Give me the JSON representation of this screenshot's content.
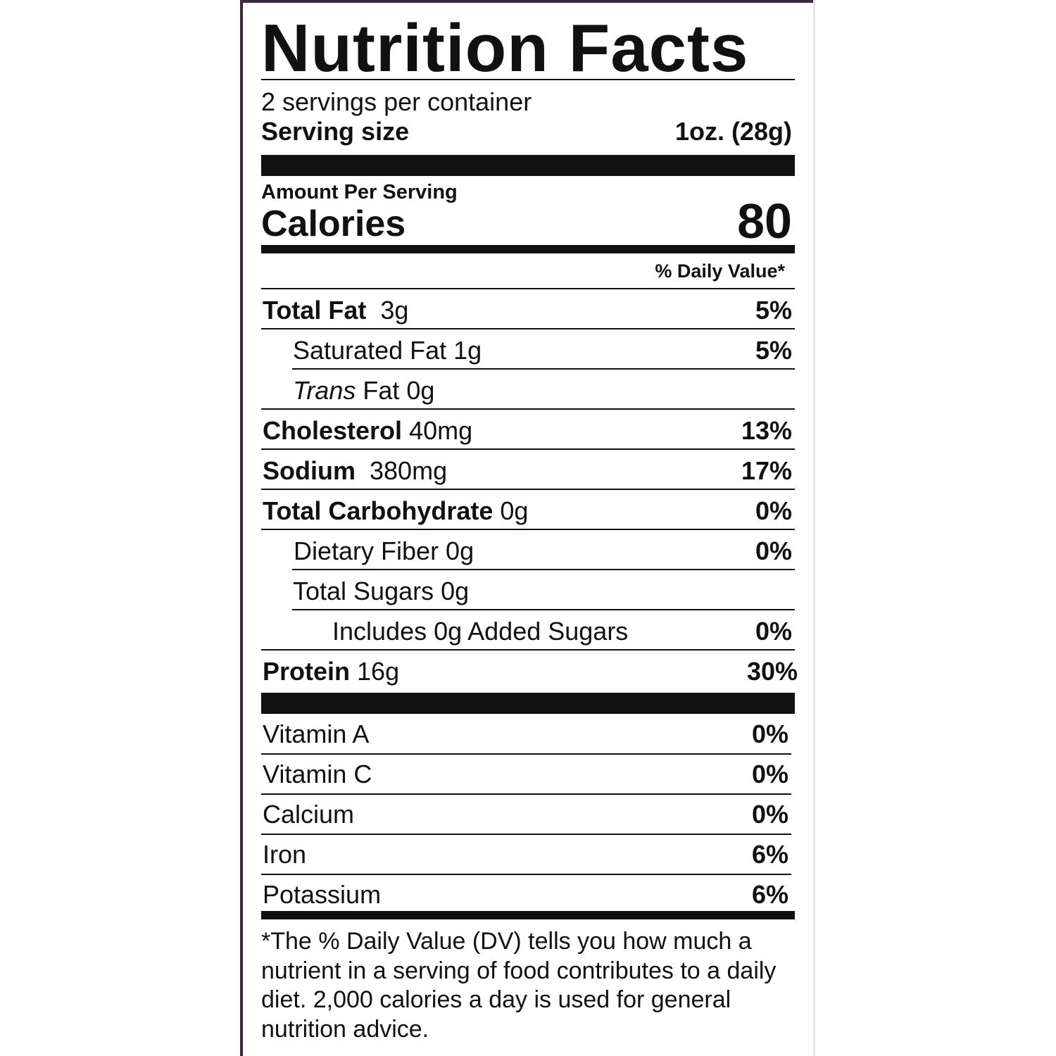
{
  "title": "Nutrition Facts",
  "servings_per_container": "2 servings per container",
  "serving_size": {
    "label": "Serving size",
    "value": "1oz. (28g)"
  },
  "amount_per_serving": "Amount Per Serving",
  "calories": {
    "label": "Calories",
    "value": "80"
  },
  "daily_value_header": "% Daily Value*",
  "nutrients": [
    {
      "name": "Total Fat",
      "amount": "3g",
      "dv": "5%"
    },
    {
      "name": "Saturated Fat 1g",
      "dv": "5%"
    },
    {
      "name_italic": "Trans",
      "name_rest": " Fat 0g"
    },
    {
      "name": "Cholesterol",
      "amount": "40mg",
      "dv": "13%"
    },
    {
      "name": "Sodium",
      "amount": "380mg",
      "dv": "17%"
    },
    {
      "name": "Total Carbohydrate",
      "amount": "0g",
      "dv": "0%"
    },
    {
      "name": "Dietary Fiber 0g",
      "dv": "0%"
    },
    {
      "name": "Total Sugars 0g"
    },
    {
      "name": "Includes 0g Added Sugars",
      "dv": "0%"
    },
    {
      "name": "Protein",
      "amount": "16g",
      "dv": "30%"
    }
  ],
  "vitamins": [
    {
      "name": "Vitamin A",
      "dv": "0%"
    },
    {
      "name": "Vitamin C",
      "dv": "0%"
    },
    {
      "name": "Calcium",
      "dv": "0%"
    },
    {
      "name": "Iron",
      "dv": "6%"
    },
    {
      "name": "Potassium",
      "dv": "6%"
    }
  ],
  "footnote": "*The % Daily Value (DV) tells you how much a nutrient in a serving of food contributes to a daily diet. 2,000 calories a day is used for general nutrition advice."
}
